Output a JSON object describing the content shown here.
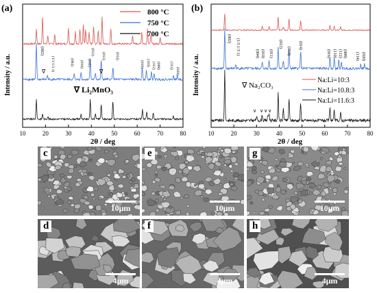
{
  "panel_a": {
    "letter": "(a)",
    "legend": [
      "800 °C",
      "750 °C",
      "700 °C"
    ],
    "marker_note": "∇ Li₂MnO₃",
    "peak_labels": [
      "(002)",
      "(1/3 1/3 1)",
      "(004)",
      "(010)",
      "(011)",
      "(012)",
      "(013)",
      "(014)",
      "(016)",
      "(110)",
      "(112)",
      "(008)",
      "(114)",
      "(020)"
    ]
  },
  "panel_b": {
    "letter": "(b)",
    "legend": [
      "Na:Li=10:3",
      "Na:Li=10.8:3",
      "Na:Li=11.6:3"
    ],
    "marker_note": "∇ Na₂CO₃",
    "peak_labels": [
      "(002)",
      "(1/3 1/3 1)",
      "(004)",
      "(010)",
      "(011)",
      "(012)",
      "(013)",
      "(014)",
      "(016)",
      "(110)",
      "(112)",
      "(008)",
      "(114)",
      "(020)"
    ]
  },
  "sem": {
    "panels": [
      {
        "letter": "c",
        "scale": "10μm"
      },
      {
        "letter": "e",
        "scale": "10μm"
      },
      {
        "letter": "g",
        "scale": "10μm"
      },
      {
        "letter": "d",
        "scale": "4μm"
      },
      {
        "letter": "f",
        "scale": "4μm"
      },
      {
        "letter": "h",
        "scale": "4μm"
      }
    ]
  },
  "chart_data": [
    {
      "type": "line",
      "panel": "(a)",
      "xlabel": "2θ / deg",
      "ylabel": "Intensity / a.u.",
      "xlim": [
        10,
        80
      ],
      "xticks": [
        10,
        20,
        30,
        40,
        50,
        60,
        70,
        80
      ],
      "colors": {
        "800 °C": "#d9534f",
        "750 °C": "#3b6fd8",
        "700 °C": "#111111"
      },
      "series": [
        {
          "name": "800 °C",
          "peaks": [
            [
              16.0,
              0.55
            ],
            [
              18.7,
              1.0
            ],
            [
              21.0,
              0.3
            ],
            [
              24.0,
              0.35
            ],
            [
              30.0,
              0.6
            ],
            [
              33.0,
              0.45
            ],
            [
              35.0,
              0.55
            ],
            [
              36.5,
              0.7
            ],
            [
              37.5,
              0.5
            ],
            [
              39.0,
              0.4
            ],
            [
              41.0,
              0.6
            ],
            [
              43.0,
              0.5
            ],
            [
              44.7,
              1.0
            ],
            [
              48.5,
              0.55
            ],
            [
              58.0,
              0.3
            ],
            [
              62.0,
              0.45
            ],
            [
              64.5,
              0.55
            ],
            [
              66.0,
              0.35
            ],
            [
              70.0,
              0.25
            ]
          ]
        },
        {
          "name": "750 °C",
          "peaks": [
            [
              16.0,
              1.0
            ],
            [
              20.8,
              0.12
            ],
            [
              32.5,
              0.15
            ],
            [
              35.5,
              0.2
            ],
            [
              39.5,
              0.6
            ],
            [
              41.8,
              0.18
            ],
            [
              44.3,
              0.55
            ],
            [
              49.4,
              0.35
            ],
            [
              62.2,
              0.35
            ],
            [
              64.0,
              0.25
            ],
            [
              66.2,
              0.2
            ],
            [
              67.4,
              0.15
            ],
            [
              75.8,
              0.1
            ],
            [
              77.5,
              0.1
            ]
          ]
        },
        {
          "name": "700 °C",
          "peaks": [
            [
              16.0,
              0.7
            ],
            [
              18.7,
              0.2
            ],
            [
              21.0,
              0.1
            ],
            [
              35.5,
              0.2
            ],
            [
              39.5,
              0.7
            ],
            [
              41.8,
              0.2
            ],
            [
              44.3,
              0.55
            ],
            [
              49.4,
              0.65
            ],
            [
              62.3,
              0.35
            ],
            [
              64.2,
              0.25
            ],
            [
              67.0,
              0.2
            ],
            [
              75.8,
              0.1
            ]
          ]
        }
      ]
    },
    {
      "type": "line",
      "panel": "(b)",
      "xlabel": "2θ / deg",
      "ylabel": "Intensity / a.u.",
      "xlim": [
        10,
        80
      ],
      "xticks": [
        10,
        20,
        30,
        40,
        50,
        60,
        70,
        80
      ],
      "colors": {
        "Na:Li=10:3": "#d9534f",
        "Na:Li=10.8:3": "#3b6fd8",
        "Na:Li=11.6:3": "#111111"
      },
      "series": [
        {
          "name": "Na:Li=10:3",
          "peaks": [
            [
              16.0,
              1.0
            ],
            [
              32.5,
              0.25
            ],
            [
              35.5,
              0.25
            ],
            [
              39.5,
              0.8
            ],
            [
              41.8,
              0.2
            ],
            [
              44.3,
              0.7
            ],
            [
              49.4,
              0.6
            ],
            [
              62.3,
              0.3
            ],
            [
              64.2,
              0.25
            ],
            [
              67.0,
              0.2
            ]
          ]
        },
        {
          "name": "Na:Li=10.8:3",
          "peaks": [
            [
              16.0,
              1.0
            ],
            [
              20.8,
              0.1
            ],
            [
              32.5,
              0.15
            ],
            [
              35.5,
              0.2
            ],
            [
              39.5,
              0.55
            ],
            [
              41.8,
              0.2
            ],
            [
              44.3,
              0.5
            ],
            [
              49.4,
              0.45
            ],
            [
              62.3,
              0.3
            ],
            [
              64.2,
              0.25
            ],
            [
              66.2,
              0.2
            ],
            [
              67.4,
              0.15
            ],
            [
              75.8,
              0.1
            ],
            [
              77.5,
              0.1
            ]
          ]
        },
        {
          "name": "Na:Li=11.6:3",
          "peaks": [
            [
              16.0,
              1.0
            ],
            [
              30.0,
              0.08
            ],
            [
              32.5,
              0.12
            ],
            [
              35.0,
              0.1
            ],
            [
              35.5,
              0.15
            ],
            [
              39.5,
              0.55
            ],
            [
              41.8,
              0.25
            ],
            [
              44.3,
              0.45
            ],
            [
              49.4,
              0.35
            ],
            [
              62.3,
              0.25
            ],
            [
              64.2,
              0.2
            ],
            [
              67.0,
              0.15
            ]
          ]
        }
      ]
    }
  ]
}
